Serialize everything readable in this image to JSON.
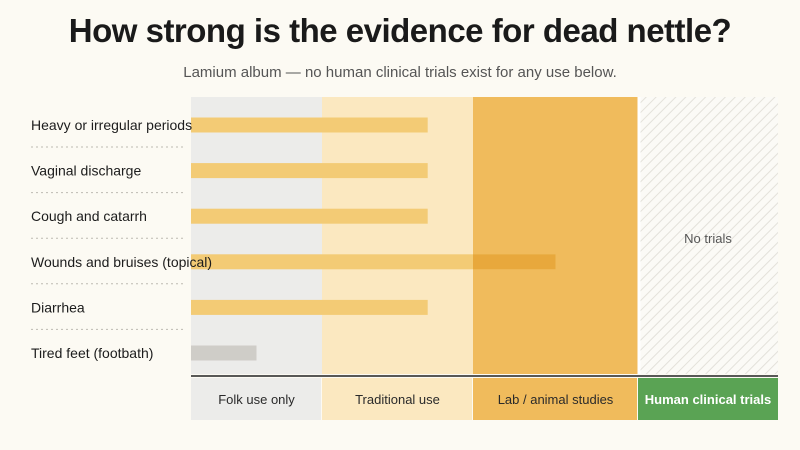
{
  "title": "How strong is the evidence for dead nettle?",
  "subtitle": "Lamium album — no human clinical trials exist for any use below.",
  "colors": {
    "tier_bg": [
      "#ececea",
      "#fbe8c0",
      "#f0bb5c",
      "#fbfaf6"
    ],
    "tier_label_bg": [
      "#ececea",
      "#fbe8c0",
      "#f0bb5c",
      "#5aa354"
    ],
    "bar_default": "#f3cb75",
    "bar_folk": "#cfcdc8",
    "bar_lab": "#e8a83c"
  },
  "chart_data": {
    "type": "bar",
    "orientation": "horizontal",
    "title": "How strong is the evidence for dead nettle?",
    "subtitle": "Lamium album — no human clinical trials exist for any use below.",
    "categories": [
      "Heavy or irregular periods",
      "Vaginal discharge",
      "Cough and catarrh",
      "Wounds and bruises (topical)",
      "Diarrhea",
      "Tired feet (footbath)"
    ],
    "evidence_tiers": [
      "Folk use only",
      "Traditional use",
      "Lab / animal studies",
      "Human clinical trials"
    ],
    "values": [
      1.7,
      1.7,
      1.7,
      2.5,
      1.7,
      0.5
    ],
    "xlim": [
      0,
      4
    ],
    "annotation": "No trials",
    "grid": false,
    "legend": "none"
  }
}
